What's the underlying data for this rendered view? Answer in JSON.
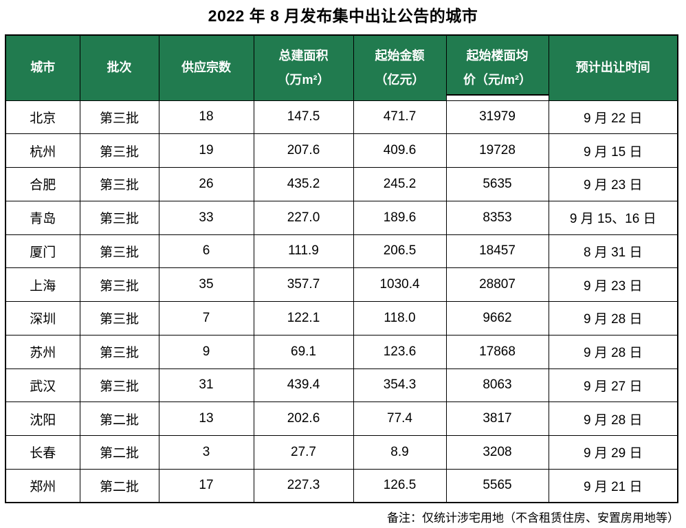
{
  "title": "2022 年 8 月发布集中出让公告的城市",
  "note": "备注：仅统计涉宅用地（不含租赁住房、安置房用地等）",
  "colors": {
    "header_bg": "#217B4F",
    "header_text": "#FFFFFF",
    "grid_border": "#000000",
    "body_text": "#000000"
  },
  "table": {
    "headers": [
      "城市",
      "批次",
      "供应宗数",
      "总建面积\n（万m²）",
      "起始金额\n（亿元）",
      "起始楼面均\n价（元/m²）",
      "预计出让时间"
    ],
    "rows": [
      [
        "北京",
        "第三批",
        "18",
        "147.5",
        "471.7",
        "31979",
        "9 月 22 日"
      ],
      [
        "杭州",
        "第三批",
        "19",
        "207.6",
        "409.6",
        "19728",
        "9 月 15 日"
      ],
      [
        "合肥",
        "第三批",
        "26",
        "435.2",
        "245.2",
        "5635",
        "9 月 23 日"
      ],
      [
        "青岛",
        "第三批",
        "33",
        "227.0",
        "189.6",
        "8353",
        "9 月 15、16 日"
      ],
      [
        "厦门",
        "第三批",
        "6",
        "111.9",
        "206.5",
        "18457",
        "8 月 31 日"
      ],
      [
        "上海",
        "第三批",
        "35",
        "357.7",
        "1030.4",
        "28807",
        "9 月 23 日"
      ],
      [
        "深圳",
        "第三批",
        "7",
        "122.1",
        "118.0",
        "9662",
        "9 月 28 日"
      ],
      [
        "苏州",
        "第三批",
        "9",
        "69.1",
        "123.6",
        "17868",
        "9 月 28 日"
      ],
      [
        "武汉",
        "第三批",
        "31",
        "439.4",
        "354.3",
        "8063",
        "9 月 27 日"
      ],
      [
        "沈阳",
        "第二批",
        "13",
        "202.6",
        "77.4",
        "3817",
        "9 月 28 日"
      ],
      [
        "长春",
        "第二批",
        "3",
        "27.7",
        "8.9",
        "3208",
        "9 月 29 日"
      ],
      [
        "郑州",
        "第二批",
        "17",
        "227.3",
        "126.5",
        "5565",
        "9 月 21 日"
      ]
    ]
  }
}
